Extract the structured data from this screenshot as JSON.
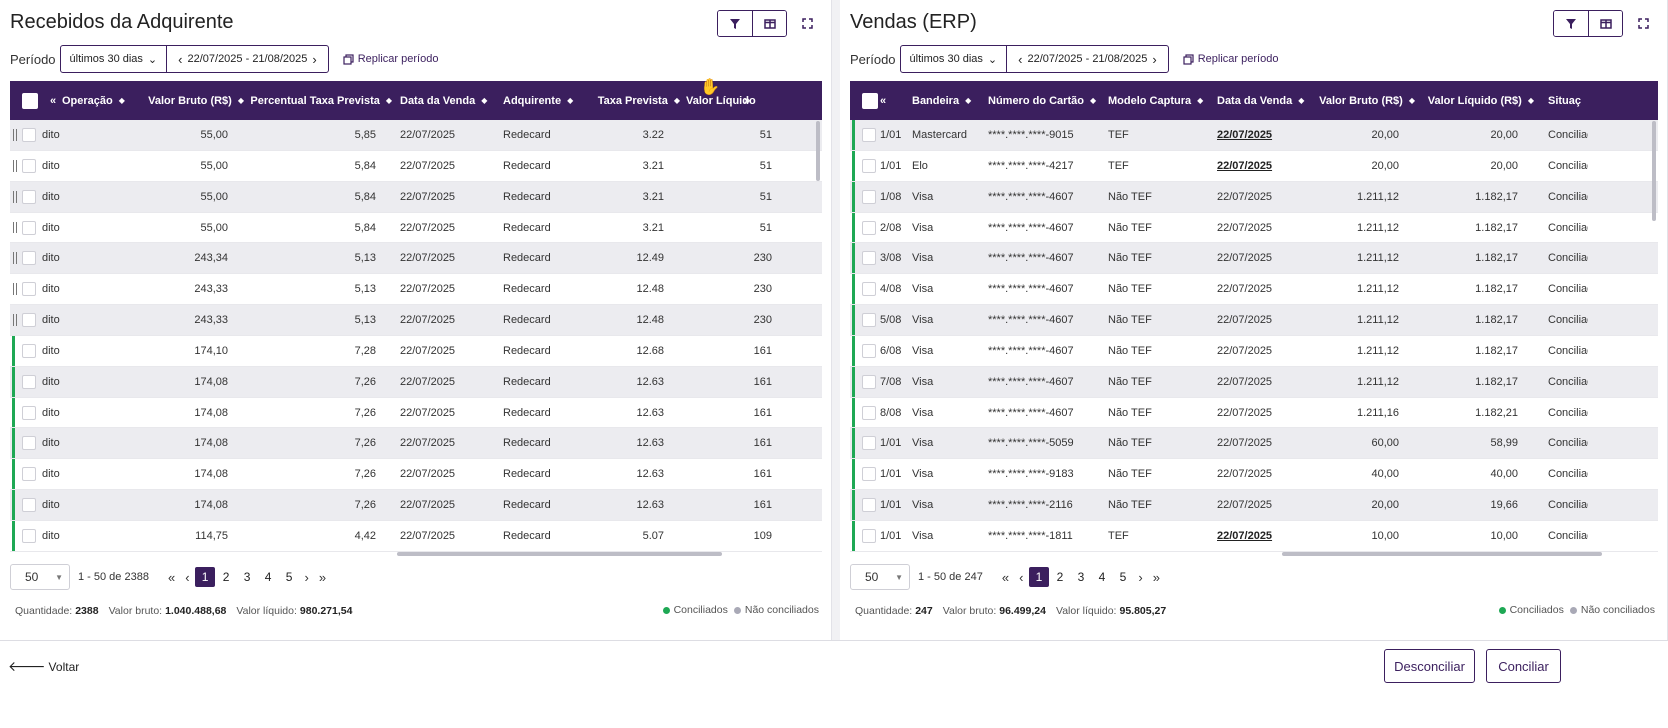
{
  "left": {
    "title": "Recebidos da Adquirente",
    "period_label": "Período",
    "period_select": "últimos 30 dias",
    "period_range": "22/07/2025 - 21/08/2025",
    "replicate": "Replicar período",
    "columns": [
      {
        "label": "«",
        "key": "nav",
        "x": 40,
        "w": 14,
        "sort": false
      },
      {
        "label": "Operação",
        "key": "op",
        "x": 52,
        "w": 74,
        "sort": true
      },
      {
        "label": "Valor Bruto (R$)",
        "key": "bruto",
        "x": 130,
        "w": 104,
        "sort": true,
        "right": true
      },
      {
        "label": "Percentual Taxa Prevista",
        "key": "perc",
        "x": 242,
        "w": 140,
        "sort": true,
        "right": true
      },
      {
        "label": "Data da Venda",
        "key": "data",
        "x": 390,
        "w": 96,
        "sort": true
      },
      {
        "label": "Adquirente",
        "key": "adq",
        "x": 493,
        "w": 84,
        "sort": true
      },
      {
        "label": "Taxa Prevista",
        "key": "taxa",
        "x": 578,
        "w": 92,
        "sort": true,
        "right": true
      },
      {
        "label": "Valor Líquido",
        "key": "liq",
        "x": 676,
        "w": 72,
        "sort": false
      },
      {
        "label": "»",
        "key": "next",
        "x": 734,
        "w": 14,
        "sort": false
      }
    ],
    "rows": [
      {
        "mark": "grip",
        "op": "dito",
        "bruto": "55,00",
        "perc": "5,85",
        "data": "22/07/2025",
        "adq": "Redecard",
        "taxa": "3.22",
        "liq": "51"
      },
      {
        "mark": "grip",
        "op": "dito",
        "bruto": "55,00",
        "perc": "5,84",
        "data": "22/07/2025",
        "adq": "Redecard",
        "taxa": "3.21",
        "liq": "51"
      },
      {
        "mark": "grip",
        "op": "dito",
        "bruto": "55,00",
        "perc": "5,84",
        "data": "22/07/2025",
        "adq": "Redecard",
        "taxa": "3.21",
        "liq": "51"
      },
      {
        "mark": "grip",
        "op": "dito",
        "bruto": "55,00",
        "perc": "5,84",
        "data": "22/07/2025",
        "adq": "Redecard",
        "taxa": "3.21",
        "liq": "51"
      },
      {
        "mark": "grip",
        "op": "dito",
        "bruto": "243,34",
        "perc": "5,13",
        "data": "22/07/2025",
        "adq": "Redecard",
        "taxa": "12.49",
        "liq": "230"
      },
      {
        "mark": "grip",
        "op": "dito",
        "bruto": "243,33",
        "perc": "5,13",
        "data": "22/07/2025",
        "adq": "Redecard",
        "taxa": "12.48",
        "liq": "230"
      },
      {
        "mark": "grip",
        "op": "dito",
        "bruto": "243,33",
        "perc": "5,13",
        "data": "22/07/2025",
        "adq": "Redecard",
        "taxa": "12.48",
        "liq": "230"
      },
      {
        "mark": "green",
        "op": "dito",
        "bruto": "174,10",
        "perc": "7,28",
        "data": "22/07/2025",
        "adq": "Redecard",
        "taxa": "12.68",
        "liq": "161"
      },
      {
        "mark": "green",
        "op": "dito",
        "bruto": "174,08",
        "perc": "7,26",
        "data": "22/07/2025",
        "adq": "Redecard",
        "taxa": "12.63",
        "liq": "161"
      },
      {
        "mark": "green",
        "op": "dito",
        "bruto": "174,08",
        "perc": "7,26",
        "data": "22/07/2025",
        "adq": "Redecard",
        "taxa": "12.63",
        "liq": "161"
      },
      {
        "mark": "green",
        "op": "dito",
        "bruto": "174,08",
        "perc": "7,26",
        "data": "22/07/2025",
        "adq": "Redecard",
        "taxa": "12.63",
        "liq": "161"
      },
      {
        "mark": "green",
        "op": "dito",
        "bruto": "174,08",
        "perc": "7,26",
        "data": "22/07/2025",
        "adq": "Redecard",
        "taxa": "12.63",
        "liq": "161"
      },
      {
        "mark": "green",
        "op": "dito",
        "bruto": "174,08",
        "perc": "7,26",
        "data": "22/07/2025",
        "adq": "Redecard",
        "taxa": "12.63",
        "liq": "161"
      },
      {
        "mark": "green",
        "op": "dito",
        "bruto": "114,75",
        "perc": "4,42",
        "data": "22/07/2025",
        "adq": "Redecard",
        "taxa": "5.07",
        "liq": "109"
      }
    ],
    "pager": {
      "size": "50",
      "range": "1 - 50 de 2388",
      "pages": [
        "1",
        "2",
        "3",
        "4",
        "5"
      ],
      "active": "1"
    },
    "summary": {
      "qty_label": "Quantidade:",
      "qty": "2388",
      "bruto_label": "Valor bruto:",
      "bruto": "1.040.488,68",
      "liq_label": "Valor líquido:",
      "liq": "980.271,54"
    }
  },
  "right": {
    "title": "Vendas (ERP)",
    "period_label": "Período",
    "period_select": "últimos 30 dias",
    "period_range": "22/07/2025 - 21/08/2025",
    "replicate": "Replicar período",
    "columns": [
      {
        "label": "«",
        "key": "nav",
        "x": 30,
        "w": 14,
        "sort": false
      },
      {
        "label": "Bandeira",
        "key": "band",
        "x": 62,
        "w": 66,
        "sort": true
      },
      {
        "label": "Número do Cartão",
        "key": "card",
        "x": 138,
        "w": 112,
        "sort": true
      },
      {
        "label": "Modelo Captura",
        "key": "modelo",
        "x": 258,
        "w": 104,
        "sort": true
      },
      {
        "label": "Data da Venda",
        "key": "data",
        "x": 367,
        "w": 94,
        "sort": true
      },
      {
        "label": "Valor Bruto (R$)",
        "key": "bruto",
        "x": 465,
        "w": 100,
        "sort": true,
        "right": true
      },
      {
        "label": "Valor Líquido (R$)",
        "key": "liq",
        "x": 572,
        "w": 112,
        "sort": true,
        "right": true
      },
      {
        "label": "Situaç",
        "key": "sit",
        "x": 698,
        "w": 40,
        "sort": false
      }
    ],
    "rows": [
      {
        "parc": "1/01",
        "band": "Mastercard",
        "card": "****.****.****-9015",
        "modelo": "TEF",
        "data": "22/07/2025",
        "u": true,
        "bruto": "20,00",
        "liq": "20,00",
        "sit": "Conciliado"
      },
      {
        "parc": "1/01",
        "band": "Elo",
        "card": "****.****.****-4217",
        "modelo": "TEF",
        "data": "22/07/2025",
        "u": true,
        "bruto": "20,00",
        "liq": "20,00",
        "sit": "Conciliado"
      },
      {
        "parc": "1/08",
        "band": "Visa",
        "card": "****.****.****-4607",
        "modelo": "Não TEF",
        "data": "22/07/2025",
        "u": false,
        "bruto": "1.211,12",
        "liq": "1.182,17",
        "sit": "Conciliado"
      },
      {
        "parc": "2/08",
        "band": "Visa",
        "card": "****.****.****-4607",
        "modelo": "Não TEF",
        "data": "22/07/2025",
        "u": false,
        "bruto": "1.211,12",
        "liq": "1.182,17",
        "sit": "Conciliado"
      },
      {
        "parc": "3/08",
        "band": "Visa",
        "card": "****.****.****-4607",
        "modelo": "Não TEF",
        "data": "22/07/2025",
        "u": false,
        "bruto": "1.211,12",
        "liq": "1.182,17",
        "sit": "Conciliado"
      },
      {
        "parc": "4/08",
        "band": "Visa",
        "card": "****.****.****-4607",
        "modelo": "Não TEF",
        "data": "22/07/2025",
        "u": false,
        "bruto": "1.211,12",
        "liq": "1.182,17",
        "sit": "Conciliado"
      },
      {
        "parc": "5/08",
        "band": "Visa",
        "card": "****.****.****-4607",
        "modelo": "Não TEF",
        "data": "22/07/2025",
        "u": false,
        "bruto": "1.211,12",
        "liq": "1.182,17",
        "sit": "Conciliado"
      },
      {
        "parc": "6/08",
        "band": "Visa",
        "card": "****.****.****-4607",
        "modelo": "Não TEF",
        "data": "22/07/2025",
        "u": false,
        "bruto": "1.211,12",
        "liq": "1.182,17",
        "sit": "Conciliado"
      },
      {
        "parc": "7/08",
        "band": "Visa",
        "card": "****.****.****-4607",
        "modelo": "Não TEF",
        "data": "22/07/2025",
        "u": false,
        "bruto": "1.211,12",
        "liq": "1.182,17",
        "sit": "Conciliado"
      },
      {
        "parc": "8/08",
        "band": "Visa",
        "card": "****.****.****-4607",
        "modelo": "Não TEF",
        "data": "22/07/2025",
        "u": false,
        "bruto": "1.211,16",
        "liq": "1.182,21",
        "sit": "Conciliado"
      },
      {
        "parc": "1/01",
        "band": "Visa",
        "card": "****.****.****-5059",
        "modelo": "Não TEF",
        "data": "22/07/2025",
        "u": false,
        "bruto": "60,00",
        "liq": "58,99",
        "sit": "Conciliado"
      },
      {
        "parc": "1/01",
        "band": "Visa",
        "card": "****.****.****-9183",
        "modelo": "Não TEF",
        "data": "22/07/2025",
        "u": false,
        "bruto": "40,00",
        "liq": "40,00",
        "sit": "Conciliado"
      },
      {
        "parc": "1/01",
        "band": "Visa",
        "card": "****.****.****-2116",
        "modelo": "Não TEF",
        "data": "22/07/2025",
        "u": false,
        "bruto": "20,00",
        "liq": "19,66",
        "sit": "Conciliado"
      },
      {
        "parc": "1/01",
        "band": "Visa",
        "card": "****.****.****-1811",
        "modelo": "TEF",
        "data": "22/07/2025",
        "u": true,
        "bruto": "10,00",
        "liq": "10,00",
        "sit": "Conciliado"
      }
    ],
    "pager": {
      "size": "50",
      "range": "1 - 50 de 247",
      "pages": [
        "1",
        "2",
        "3",
        "4",
        "5"
      ],
      "active": "1"
    },
    "summary": {
      "qty_label": "Quantidade:",
      "qty": "247",
      "bruto_label": "Valor bruto:",
      "bruto": "96.499,24",
      "liq_label": "Valor líquido:",
      "liq": "95.805,27"
    }
  },
  "legend": {
    "conciliados": "Conciliados",
    "nao_conciliados": "Não conciliados"
  },
  "colors": {
    "accent": "#3b1f5e",
    "green": "#1ea854",
    "grey": "#a9a9b6"
  },
  "footer": {
    "back": "Voltar",
    "unreconcile": "Desconciliar",
    "reconcile": "Conciliar"
  }
}
